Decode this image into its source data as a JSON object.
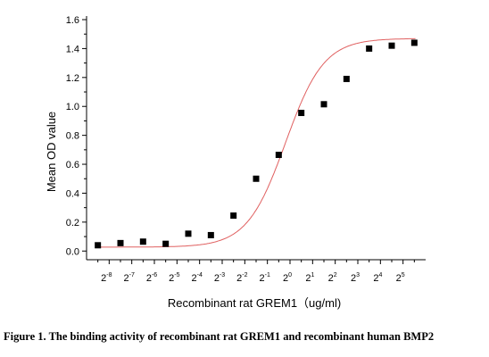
{
  "chart_data": {
    "type": "scatter",
    "xlabel": "Recombinant rat  GREM1（ug/ml)",
    "ylabel": "Mean OD value",
    "ylim": [
      -0.06,
      1.6
    ],
    "y_ticks": [
      "0.0",
      "0.2",
      "0.4",
      "0.6",
      "0.8",
      "1.0",
      "1.2",
      "1.4",
      "1.6"
    ],
    "x_scale": "log2",
    "x_ticks": [
      {
        "base": "2",
        "exp": "-8"
      },
      {
        "base": "2",
        "exp": "-7"
      },
      {
        "base": "2",
        "exp": "-6"
      },
      {
        "base": "2",
        "exp": "-5"
      },
      {
        "base": "2",
        "exp": "-4"
      },
      {
        "base": "2",
        "exp": "-3"
      },
      {
        "base": "2",
        "exp": "-2"
      },
      {
        "base": "2",
        "exp": "-1"
      },
      {
        "base": "2",
        "exp": "0"
      },
      {
        "base": "2",
        "exp": "1"
      },
      {
        "base": "2",
        "exp": "2"
      },
      {
        "base": "2",
        "exp": "3"
      },
      {
        "base": "2",
        "exp": "4"
      },
      {
        "base": "2",
        "exp": "5"
      }
    ],
    "points": [
      {
        "x": "2^-8.5",
        "y": 0.04
      },
      {
        "x": "2^-7.5",
        "y": 0.055
      },
      {
        "x": "2^-6.5",
        "y": 0.065
      },
      {
        "x": "2^-5.5",
        "y": 0.05
      },
      {
        "x": "2^-4.5",
        "y": 0.12
      },
      {
        "x": "2^-3.5",
        "y": 0.11
      },
      {
        "x": "2^-2.5",
        "y": 0.245
      },
      {
        "x": "2^-1.5",
        "y": 0.5
      },
      {
        "x": "2^-0.5",
        "y": 0.665
      },
      {
        "x": "2^0.5",
        "y": 0.955
      },
      {
        "x": "2^1.5",
        "y": 1.015
      },
      {
        "x": "2^2.5",
        "y": 1.19
      },
      {
        "x": "2^3.5",
        "y": 1.4
      },
      {
        "x": "2^4.5",
        "y": 1.42
      },
      {
        "x": "2^5.5",
        "y": 1.44
      }
    ],
    "fit_curve": {
      "type": "sigmoidal",
      "bottom": 0.027,
      "top": 1.47,
      "midpoint_log2": -0.2,
      "slope": 0.85
    },
    "colors": {
      "points": "#000000",
      "curve": "#e06060",
      "axis": "#000000"
    },
    "grid": false
  },
  "caption": "Figure 1. The binding activity of recombinant rat GREM1 and recombinant human BMP2"
}
